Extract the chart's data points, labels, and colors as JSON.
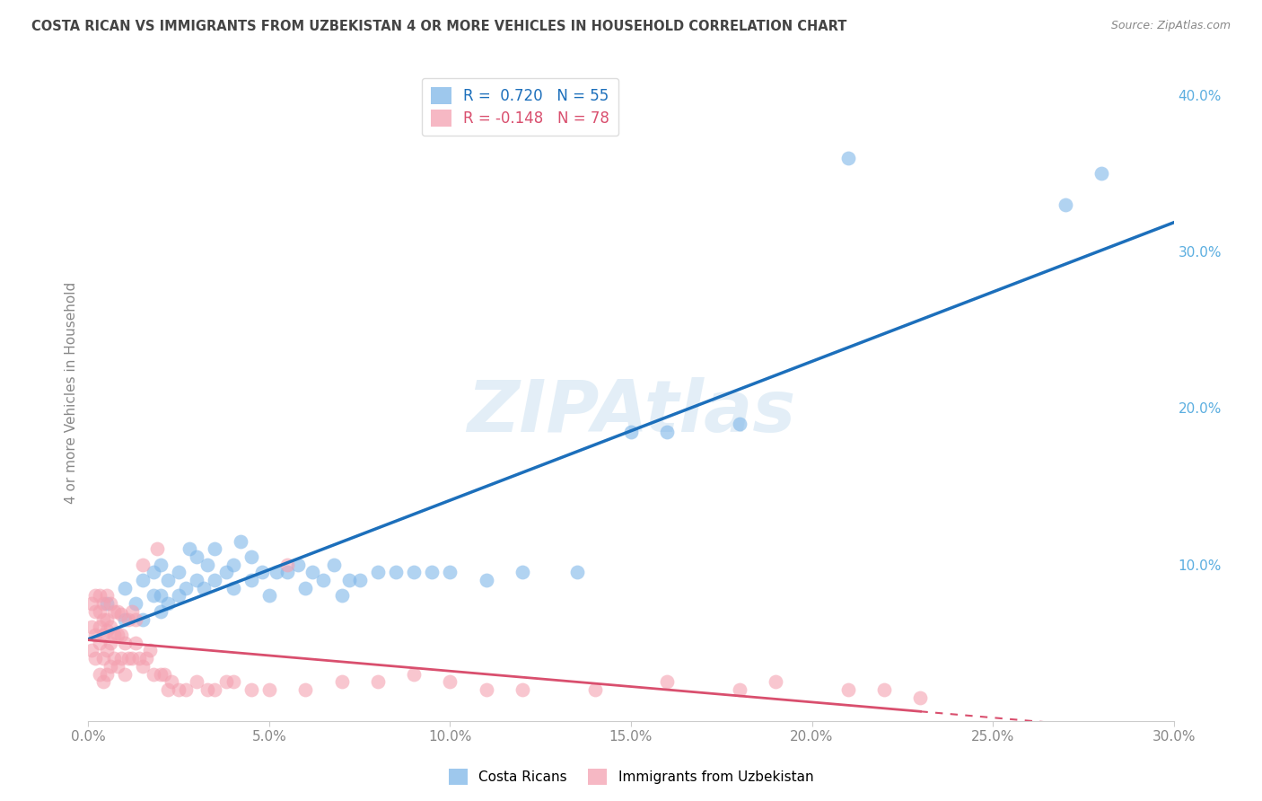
{
  "title": "COSTA RICAN VS IMMIGRANTS FROM UZBEKISTAN 4 OR MORE VEHICLES IN HOUSEHOLD CORRELATION CHART",
  "source": "Source: ZipAtlas.com",
  "ylabel": "4 or more Vehicles in Household",
  "watermark": "ZIPAtlas",
  "xlim": [
    0.0,
    0.3
  ],
  "ylim": [
    0.0,
    0.42
  ],
  "xticks": [
    0.0,
    0.05,
    0.1,
    0.15,
    0.2,
    0.25,
    0.3
  ],
  "yticks": [
    0.0,
    0.1,
    0.2,
    0.3,
    0.4
  ],
  "blue_R": 0.72,
  "blue_N": 55,
  "pink_R": -0.148,
  "pink_N": 78,
  "blue_color": "#7EB6E8",
  "pink_color": "#F4A0B0",
  "blue_line_color": "#1C6FBB",
  "pink_line_color": "#D94F6E",
  "legend_label_blue": "Costa Ricans",
  "legend_label_pink": "Immigrants from Uzbekistan",
  "blue_scatter_x": [
    0.005,
    0.01,
    0.01,
    0.013,
    0.015,
    0.015,
    0.018,
    0.018,
    0.02,
    0.02,
    0.02,
    0.022,
    0.022,
    0.025,
    0.025,
    0.027,
    0.028,
    0.03,
    0.03,
    0.032,
    0.033,
    0.035,
    0.035,
    0.038,
    0.04,
    0.04,
    0.042,
    0.045,
    0.045,
    0.048,
    0.05,
    0.052,
    0.055,
    0.058,
    0.06,
    0.062,
    0.065,
    0.068,
    0.07,
    0.072,
    0.075,
    0.08,
    0.085,
    0.09,
    0.095,
    0.1,
    0.11,
    0.12,
    0.135,
    0.15,
    0.16,
    0.18,
    0.21,
    0.27,
    0.28
  ],
  "blue_scatter_y": [
    0.075,
    0.065,
    0.085,
    0.075,
    0.065,
    0.09,
    0.08,
    0.095,
    0.07,
    0.08,
    0.1,
    0.075,
    0.09,
    0.08,
    0.095,
    0.085,
    0.11,
    0.09,
    0.105,
    0.085,
    0.1,
    0.09,
    0.11,
    0.095,
    0.085,
    0.1,
    0.115,
    0.09,
    0.105,
    0.095,
    0.08,
    0.095,
    0.095,
    0.1,
    0.085,
    0.095,
    0.09,
    0.1,
    0.08,
    0.09,
    0.09,
    0.095,
    0.095,
    0.095,
    0.095,
    0.095,
    0.09,
    0.095,
    0.095,
    0.185,
    0.185,
    0.19,
    0.36,
    0.33,
    0.35
  ],
  "pink_scatter_x": [
    0.001,
    0.001,
    0.001,
    0.002,
    0.002,
    0.002,
    0.002,
    0.003,
    0.003,
    0.003,
    0.003,
    0.003,
    0.004,
    0.004,
    0.004,
    0.004,
    0.004,
    0.005,
    0.005,
    0.005,
    0.005,
    0.005,
    0.006,
    0.006,
    0.006,
    0.006,
    0.007,
    0.007,
    0.007,
    0.008,
    0.008,
    0.008,
    0.009,
    0.009,
    0.009,
    0.01,
    0.01,
    0.011,
    0.011,
    0.012,
    0.012,
    0.013,
    0.013,
    0.014,
    0.015,
    0.015,
    0.016,
    0.017,
    0.018,
    0.019,
    0.02,
    0.021,
    0.022,
    0.023,
    0.025,
    0.027,
    0.03,
    0.033,
    0.035,
    0.038,
    0.04,
    0.045,
    0.05,
    0.055,
    0.06,
    0.07,
    0.08,
    0.09,
    0.1,
    0.11,
    0.12,
    0.14,
    0.16,
    0.18,
    0.19,
    0.21,
    0.22,
    0.23
  ],
  "pink_scatter_y": [
    0.045,
    0.06,
    0.075,
    0.04,
    0.055,
    0.07,
    0.08,
    0.03,
    0.05,
    0.06,
    0.07,
    0.08,
    0.025,
    0.04,
    0.055,
    0.065,
    0.075,
    0.03,
    0.045,
    0.058,
    0.065,
    0.08,
    0.035,
    0.05,
    0.06,
    0.075,
    0.04,
    0.055,
    0.07,
    0.035,
    0.055,
    0.07,
    0.04,
    0.055,
    0.068,
    0.03,
    0.05,
    0.04,
    0.065,
    0.04,
    0.07,
    0.05,
    0.065,
    0.04,
    0.035,
    0.1,
    0.04,
    0.045,
    0.03,
    0.11,
    0.03,
    0.03,
    0.02,
    0.025,
    0.02,
    0.02,
    0.025,
    0.02,
    0.02,
    0.025,
    0.025,
    0.02,
    0.02,
    0.1,
    0.02,
    0.025,
    0.025,
    0.03,
    0.025,
    0.02,
    0.02,
    0.02,
    0.025,
    0.02,
    0.025,
    0.02,
    0.02,
    0.015
  ],
  "background_color": "#ffffff",
  "grid_color": "#cccccc",
  "title_color": "#444444",
  "axis_color": "#888888"
}
